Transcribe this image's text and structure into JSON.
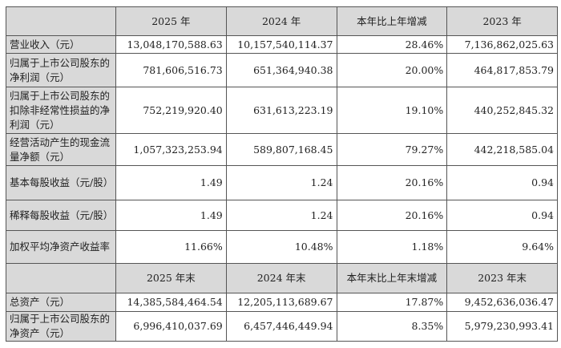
{
  "header1": [
    "",
    "2025 年",
    "2024 年",
    "本年比上年增减",
    "2023 年"
  ],
  "rows1": [
    {
      "label": "营业收入（元）",
      "values": [
        "13,048,170,588.63",
        "10,157,540,114.37",
        "28.46%",
        "7,136,862,025.63"
      ]
    },
    {
      "label": "归属于上市公司股东的净利润（元）",
      "values": [
        "781,606,516.73",
        "651,364,940.38",
        "20.00%",
        "464,817,853.79"
      ]
    },
    {
      "label": "归属于上市公司股东的扣除非经常性损益的净利润（元）",
      "values": [
        "752,219,920.40",
        "631,613,223.19",
        "19.10%",
        "440,252,845.32"
      ]
    },
    {
      "label": "经营活动产生的现金流量净额（元）",
      "values": [
        "1,057,323,253.94",
        "589,807,168.45",
        "79.27%",
        "442,218,585.04"
      ]
    },
    {
      "label": "基本每股收益（元/股）",
      "values": [
        "1.49",
        "1.24",
        "20.16%",
        "0.94"
      ]
    },
    {
      "label": "稀释每股收益（元/股）",
      "values": [
        "1.49",
        "1.24",
        "20.16%",
        "0.94"
      ]
    },
    {
      "label": "加权平均净资产收益率",
      "values": [
        "11.66%",
        "10.48%",
        "1.18%",
        "9.64%"
      ]
    }
  ],
  "header2": [
    "",
    "2025 年末",
    "2024 年末",
    "本年末比上年末增减",
    "2023 年末"
  ],
  "rows2": [
    {
      "label": "总资产（元）",
      "values": [
        "14,385,584,464.54",
        "12,205,113,689.67",
        "17.87%",
        "9,452,636,036.47"
      ]
    },
    {
      "label": "归属于上市公司股东的净资产（元）",
      "values": [
        "6,996,410,037.69",
        "6,457,446,449.94",
        "8.35%",
        "5,979,230,993.41"
      ]
    }
  ]
}
